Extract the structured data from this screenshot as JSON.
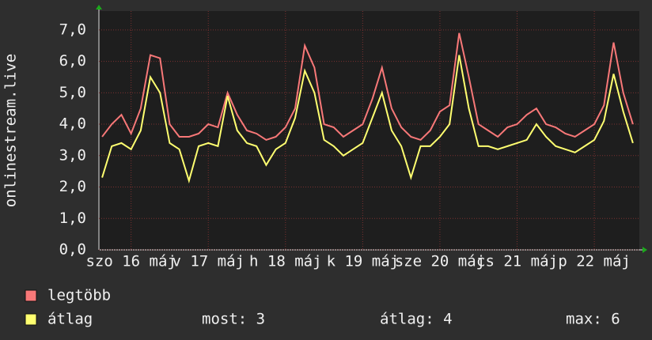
{
  "chart_data": {
    "type": "line",
    "y_label": "onlinestream.live",
    "x": [
      3,
      6,
      9,
      12,
      15,
      18,
      21,
      24,
      27,
      30,
      33,
      36,
      39,
      42,
      45,
      48,
      51,
      54,
      57,
      60,
      63,
      66,
      69,
      72,
      75,
      78,
      81,
      84,
      87,
      90,
      93,
      96,
      99,
      102,
      105,
      108,
      111,
      114,
      117,
      120,
      123,
      126,
      129,
      132,
      135,
      138,
      141,
      144,
      147,
      150,
      153,
      156,
      159,
      162,
      165,
      168
    ],
    "xlim": [
      2,
      170
    ],
    "xticks": [
      {
        "value": 12,
        "label": "szo 16 máj"
      },
      {
        "value": 36,
        "label": "v 17 máj"
      },
      {
        "value": 60,
        "label": "h 18 máj"
      },
      {
        "value": 84,
        "label": "k 19 máj"
      },
      {
        "value": 108,
        "label": "sze 20 máj"
      },
      {
        "value": 132,
        "label": "cs 21 máj"
      },
      {
        "value": 156,
        "label": "p 22 máj"
      }
    ],
    "ylim": [
      0,
      7.6
    ],
    "yticks": [
      {
        "value": 0,
        "label": "0,0"
      },
      {
        "value": 1,
        "label": "1,0"
      },
      {
        "value": 2,
        "label": "2,0"
      },
      {
        "value": 3,
        "label": "3,0"
      },
      {
        "value": 4,
        "label": "4,0"
      },
      {
        "value": 5,
        "label": "5,0"
      },
      {
        "value": 6,
        "label": "6,0"
      },
      {
        "value": 7,
        "label": "7,0"
      }
    ],
    "grid": true,
    "series": [
      {
        "name": "legtöbb",
        "color": "#f87878",
        "values": [
          3.6,
          4.0,
          4.3,
          3.7,
          4.5,
          6.2,
          6.1,
          4.0,
          3.6,
          3.6,
          3.7,
          4.0,
          3.9,
          5.0,
          4.3,
          3.8,
          3.7,
          3.5,
          3.6,
          3.9,
          4.5,
          6.5,
          5.8,
          4.0,
          3.9,
          3.6,
          3.8,
          4.0,
          4.8,
          5.8,
          4.5,
          3.9,
          3.6,
          3.5,
          3.8,
          4.4,
          4.6,
          6.9,
          5.5,
          4.0,
          3.8,
          3.6,
          3.9,
          4.0,
          4.3,
          4.5,
          4.0,
          3.9,
          3.7,
          3.6,
          3.8,
          4.0,
          4.6,
          6.6,
          5.0,
          4.0
        ]
      },
      {
        "name": "átlag",
        "color": "#ffff70",
        "values": [
          2.3,
          3.3,
          3.4,
          3.2,
          3.8,
          5.5,
          5.0,
          3.4,
          3.2,
          2.2,
          3.3,
          3.4,
          3.3,
          4.9,
          3.8,
          3.4,
          3.3,
          2.7,
          3.2,
          3.4,
          4.2,
          5.7,
          5.0,
          3.5,
          3.3,
          3.0,
          3.2,
          3.4,
          4.2,
          5.0,
          3.8,
          3.3,
          2.3,
          3.3,
          3.3,
          3.6,
          4.0,
          6.2,
          4.5,
          3.3,
          3.3,
          3.2,
          3.3,
          3.4,
          3.5,
          4.0,
          3.6,
          3.3,
          3.2,
          3.1,
          3.3,
          3.5,
          4.1,
          5.6,
          4.4,
          3.4
        ]
      }
    ],
    "stats": [
      "most: 3",
      "átlag: 4",
      "max: 6"
    ]
  }
}
